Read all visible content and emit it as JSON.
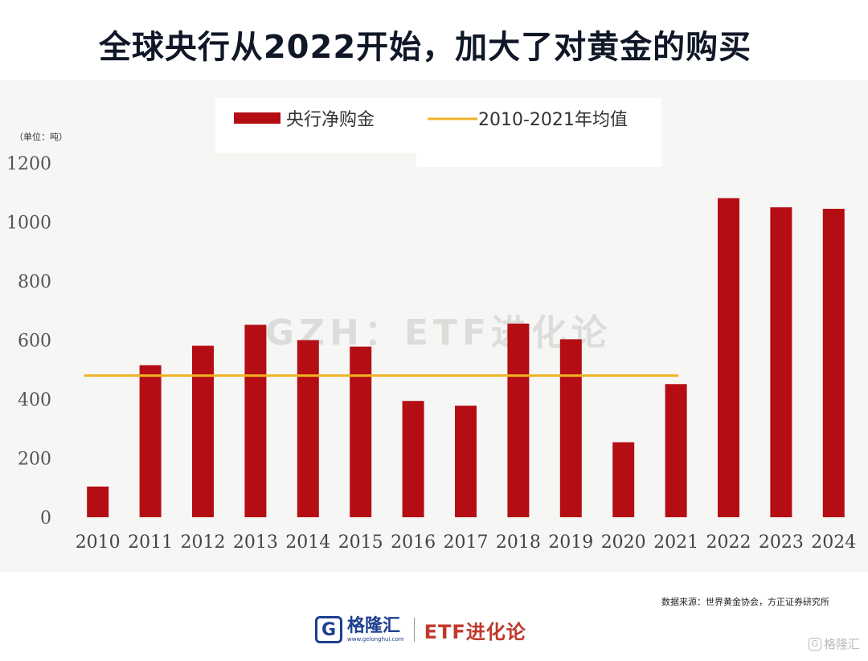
{
  "title": "全球央行从2022开始，加大了对黄金的购买",
  "chart_data": {
    "type": "bar",
    "unit_label": "（单位：吨）",
    "categories": [
      "2010",
      "2011",
      "2012",
      "2013",
      "2014",
      "2015",
      "2016",
      "2017",
      "2018",
      "2019",
      "2020",
      "2021",
      "2022",
      "2023",
      "2024"
    ],
    "series": [
      {
        "name": "央行净购金",
        "color": "#b50d14",
        "values": [
          104,
          515,
          581,
          652,
          600,
          578,
          394,
          378,
          656,
          603,
          254,
          451,
          1081,
          1050,
          1045
        ]
      }
    ],
    "reference_line": {
      "name": "2010-2021年均值",
      "color": "#f0b323",
      "value": 480,
      "from": "2010",
      "to": "2021"
    },
    "yticks": [
      0,
      200,
      400,
      600,
      800,
      1000,
      1200
    ],
    "ylim": [
      0,
      1200
    ],
    "legend_position": "top",
    "grid": false
  },
  "watermark": "GZH：ETF进化论",
  "source": "数据来源：世界黄金协会，方正证券研究所",
  "footer": {
    "logo_icon": "G",
    "brand_name": "格隆汇",
    "brand_url": "www.gelonghui.com",
    "etf_label": "ETF进化论",
    "corner_text": "格隆汇",
    "corner_icon": "G"
  }
}
